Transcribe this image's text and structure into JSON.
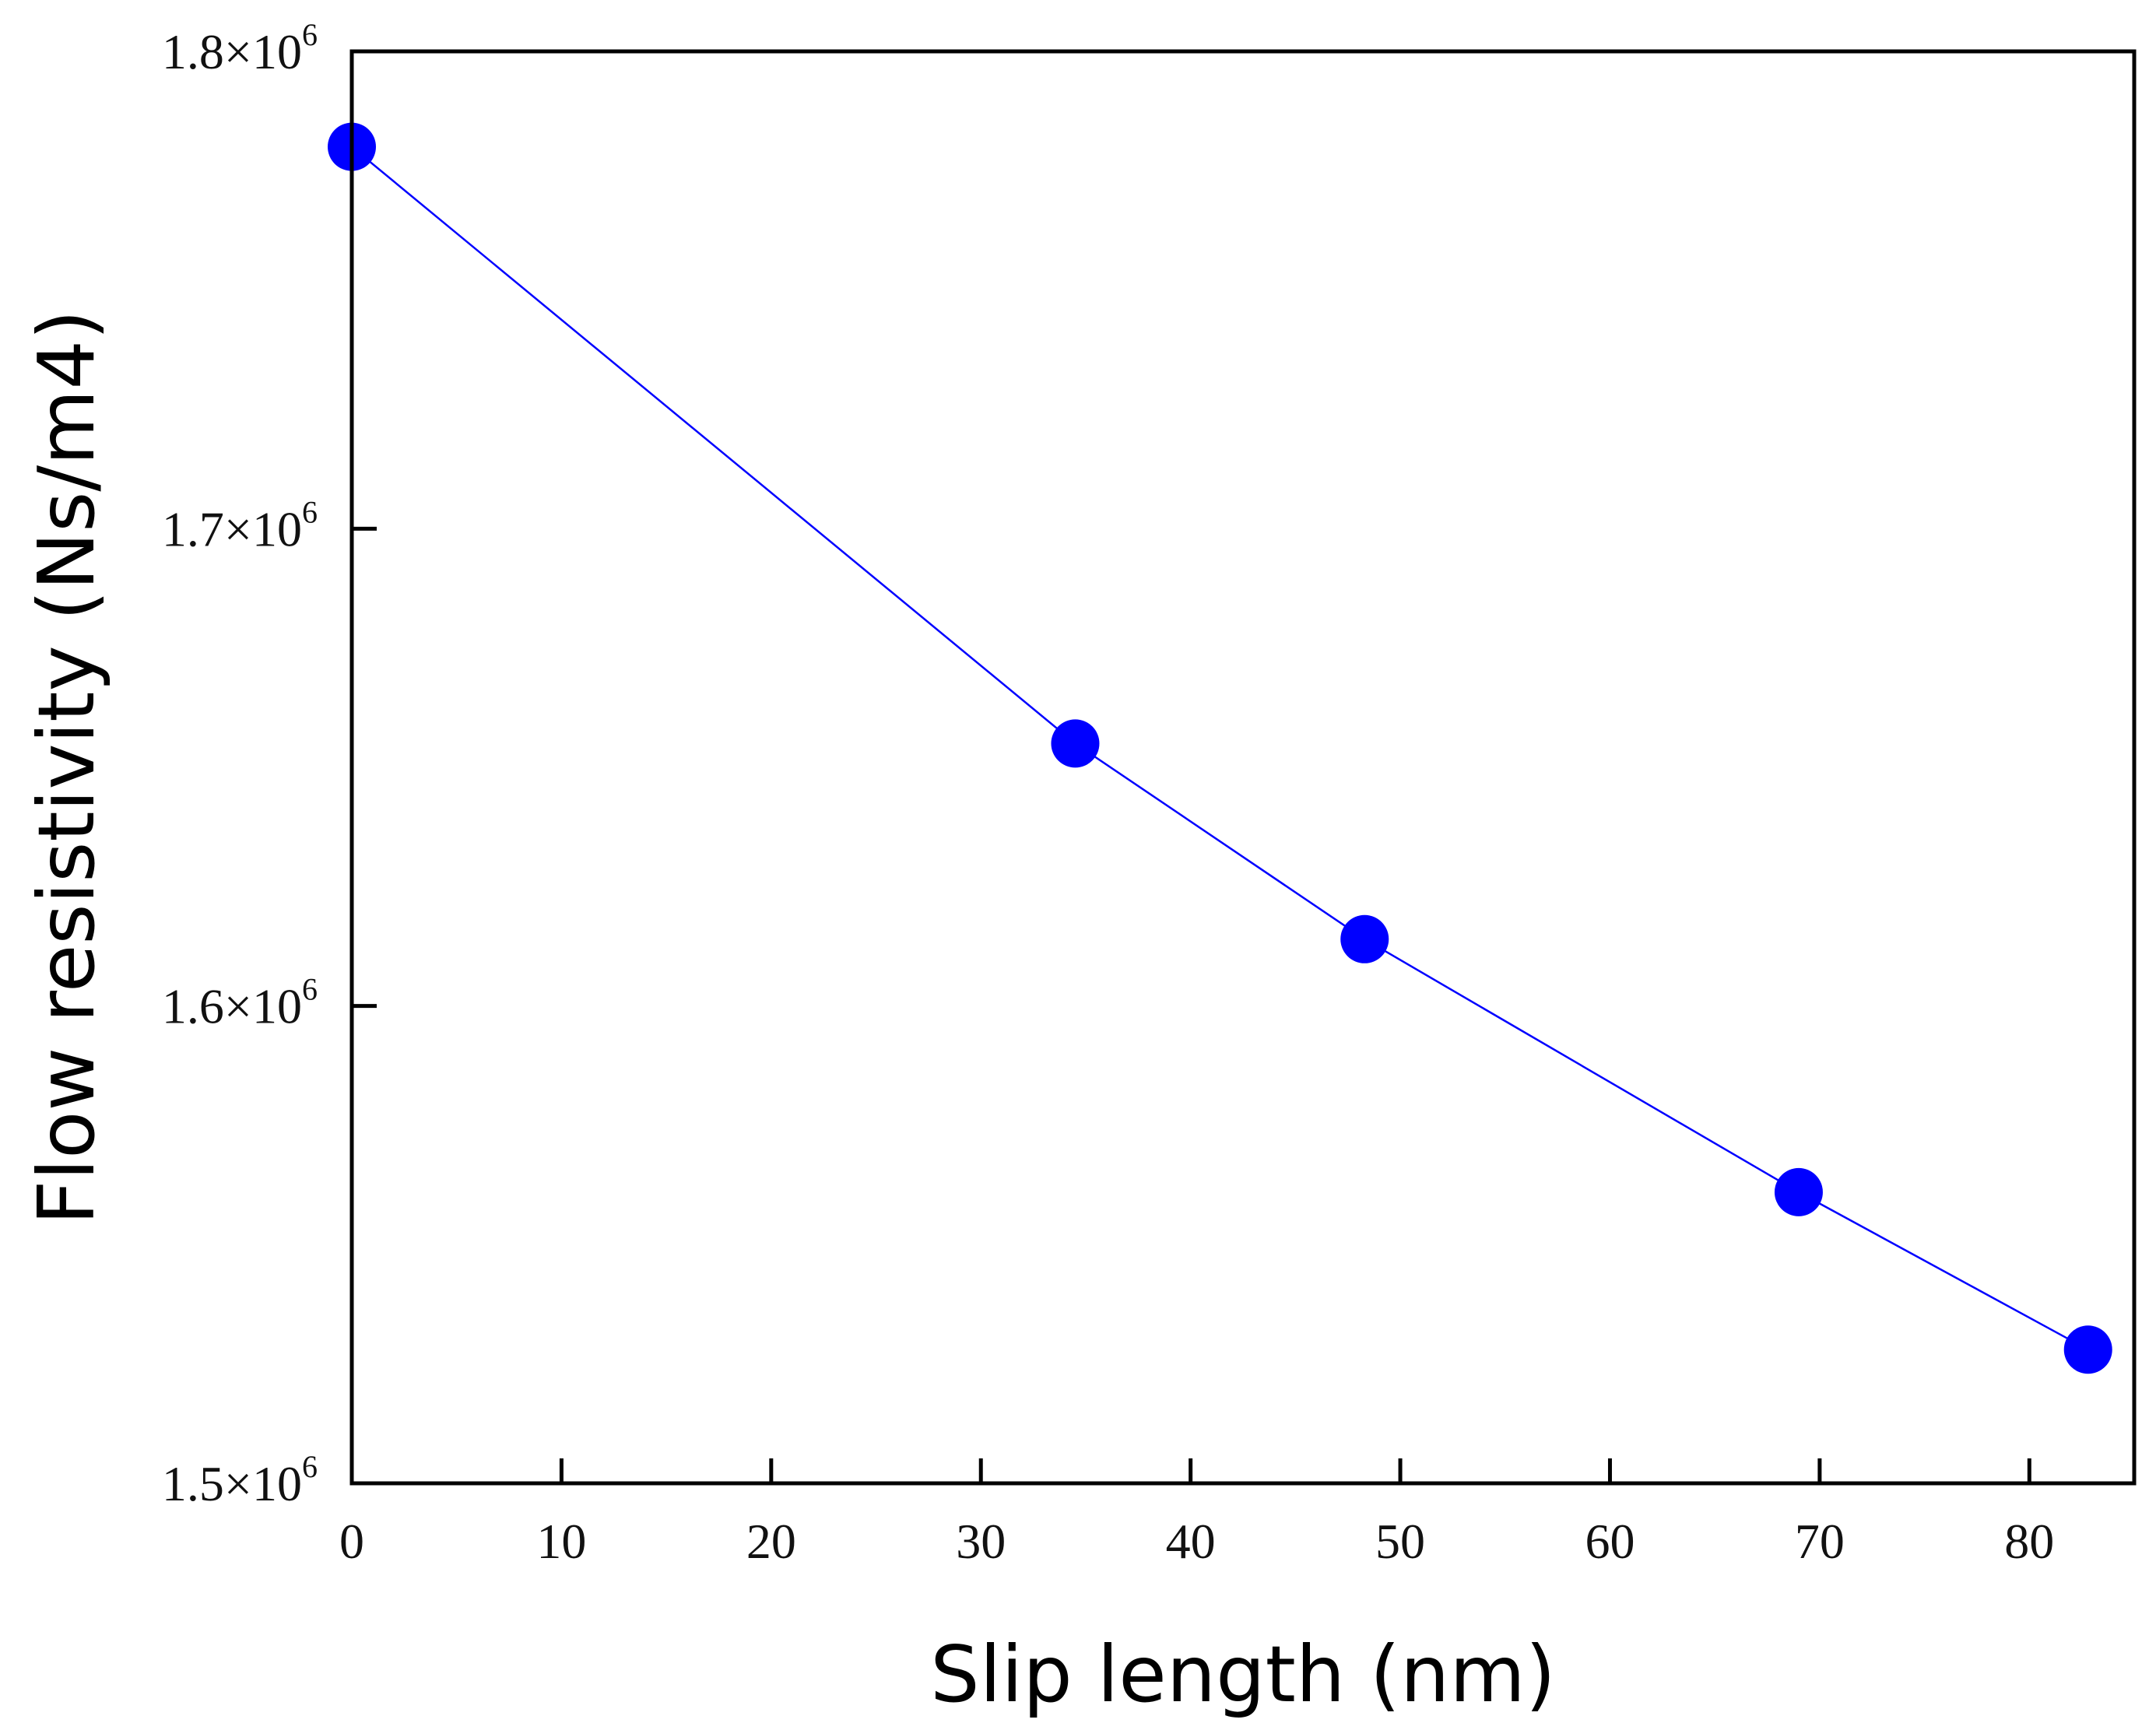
{
  "chart_data": {
    "type": "line",
    "title": "",
    "xlabel": "Slip length (nm)",
    "ylabel": "Flow resistivity (Ns/m4)",
    "xlim": [
      0,
      85
    ],
    "ylim": [
      1500000,
      1800000
    ],
    "x_ticks": [
      0,
      10,
      20,
      30,
      40,
      50,
      60,
      70,
      80
    ],
    "x_tick_labels": [
      "0",
      "10",
      "20",
      "30",
      "40",
      "50",
      "60",
      "70",
      "80"
    ],
    "y_ticks": [
      1500000,
      1600000,
      1700000,
      1800000
    ],
    "y_tick_labels": [
      {
        "mantissa": "1.5×10",
        "exponent": "6"
      },
      {
        "mantissa": "1.6×10",
        "exponent": "6"
      },
      {
        "mantissa": "1.7×10",
        "exponent": "6"
      },
      {
        "mantissa": "1.8×10",
        "exponent": "6"
      }
    ],
    "grid": false,
    "legend": "none",
    "series": [
      {
        "name": "Flow resistivity",
        "color": "#0000ff",
        "marker": "circle",
        "x": [
          0,
          34.5,
          48.3,
          69.0,
          82.8
        ],
        "y": [
          1780000,
          1655000,
          1614000,
          1561000,
          1528000
        ]
      }
    ]
  }
}
